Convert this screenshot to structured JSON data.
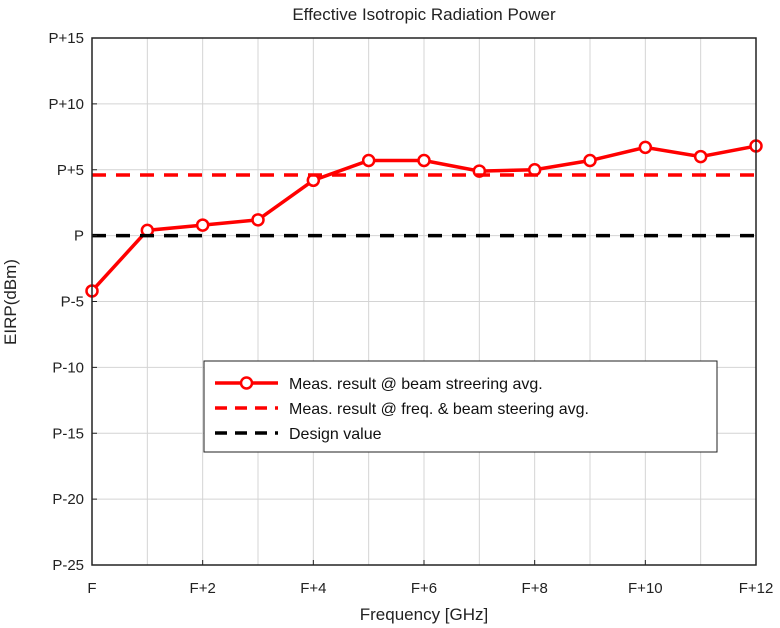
{
  "chart_data": {
    "type": "line",
    "title": "Effective Isotropic Radiation Power",
    "xlabel": "Frequency [GHz]",
    "ylabel": "EIRP(dBm)",
    "x_tick_labels": [
      "F",
      "F+2",
      "F+4",
      "F+6",
      "F+8",
      "F+10",
      "F+12"
    ],
    "x_ticks": [
      0,
      2,
      4,
      6,
      8,
      10,
      12
    ],
    "y_tick_labels": [
      "P+15",
      "P+10",
      "P+5",
      "P",
      "P-5",
      "P-10",
      "P-15",
      "P-20",
      "P-25"
    ],
    "y_ticks": [
      15,
      10,
      5,
      0,
      -5,
      -10,
      -15,
      -20,
      -25
    ],
    "xlim": [
      0,
      12
    ],
    "ylim": [
      -25,
      15
    ],
    "grid": true,
    "legend_position": "lower-center",
    "series": [
      {
        "name": "Meas. result @ beam streering avg.",
        "style": "solid-circle",
        "color": "#ff0000",
        "x": [
          0,
          1,
          2,
          3,
          4,
          5,
          6,
          7,
          8,
          9,
          10,
          11,
          12
        ],
        "y": [
          -4.2,
          0.4,
          0.8,
          1.2,
          4.2,
          5.7,
          5.7,
          4.9,
          5.0,
          5.7,
          6.7,
          6.0,
          6.8
        ]
      },
      {
        "name": "Meas. result @ freq. & beam steering avg.",
        "style": "dashed",
        "color": "#ff0000",
        "x": [
          0,
          12
        ],
        "y": [
          4.6,
          4.6
        ]
      },
      {
        "name": "Design value",
        "style": "dashed",
        "color": "#000000",
        "x": [
          0,
          12
        ],
        "y": [
          0,
          0
        ]
      }
    ]
  }
}
